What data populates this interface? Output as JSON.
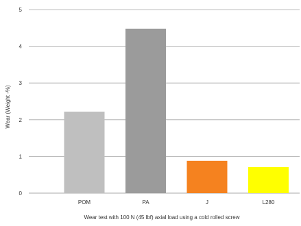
{
  "chart_data": {
    "type": "bar",
    "title": "",
    "xlabel": "Wear test with 100 N (45 lbf) axial load using a cold rolled screw",
    "ylabel": "Wear (Weight -%)",
    "ylim": [
      0,
      5
    ],
    "yticks": [
      "0",
      "1",
      "2",
      "3",
      "4",
      "5"
    ],
    "categories": [
      "POM",
      "PA",
      "J",
      "L280"
    ],
    "values": [
      2.22,
      4.48,
      0.88,
      0.71
    ],
    "bar_colors": [
      "#bfbfbf",
      "#9b9b9b",
      "#f5821f",
      "#ffff00"
    ],
    "grid": true,
    "legend": "none"
  }
}
